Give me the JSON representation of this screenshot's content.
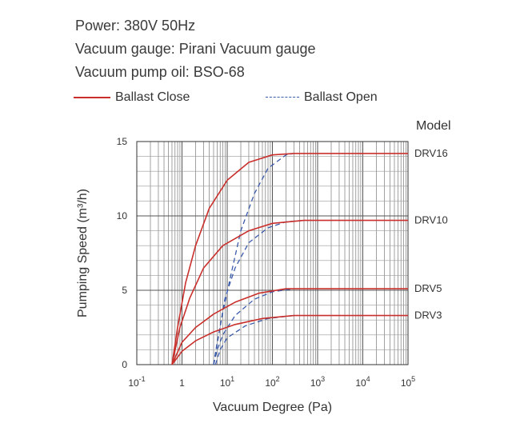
{
  "specs": {
    "power": "Power: 380V 50Hz",
    "gauge": "Vacuum gauge: Pirani Vacuum gauge",
    "oil": "Vacuum pump oil: BSO-68"
  },
  "legend": {
    "close": "Ballast Close",
    "open": "Ballast Open",
    "close_color": "#c9302c",
    "open_color": "#3b5bab"
  },
  "chart_data": {
    "type": "line",
    "xlabel": "Vacuum Degree (Pa)",
    "ylabel": "Pumping Speed (m³/h)",
    "x_scale": "log",
    "xlim": [
      0.1,
      100000
    ],
    "ylim": [
      0,
      15
    ],
    "grid": true,
    "x_ticks": [
      {
        "value": 0.1,
        "base": "10",
        "exp": "-1"
      },
      {
        "value": 1,
        "base": "1",
        "exp": ""
      },
      {
        "value": 10,
        "base": "10",
        "exp": "1"
      },
      {
        "value": 100,
        "base": "10",
        "exp": "2"
      },
      {
        "value": 1000,
        "base": "10",
        "exp": "3"
      },
      {
        "value": 10000,
        "base": "10",
        "exp": "4"
      },
      {
        "value": 100000,
        "base": "10",
        "exp": "5"
      }
    ],
    "y_ticks": [
      0,
      5,
      10,
      15
    ],
    "model_header": "Model",
    "models": [
      {
        "name": "DRV16",
        "max": 14.2,
        "close": [
          [
            0.6,
            0
          ],
          [
            0.8,
            2.5
          ],
          [
            1.2,
            5.5
          ],
          [
            2,
            8
          ],
          [
            4,
            10.5
          ],
          [
            10,
            12.4
          ],
          [
            30,
            13.6
          ],
          [
            100,
            14.1
          ],
          [
            300,
            14.2
          ],
          [
            100000,
            14.2
          ]
        ],
        "open": [
          [
            5,
            0
          ],
          [
            6,
            1.5
          ],
          [
            8,
            3.5
          ],
          [
            12,
            6
          ],
          [
            20,
            9
          ],
          [
            40,
            11.5
          ],
          [
            80,
            13.2
          ],
          [
            200,
            14.1
          ],
          [
            300,
            14.2
          ]
        ]
      },
      {
        "name": "DRV10",
        "max": 9.7,
        "close": [
          [
            0.6,
            0
          ],
          [
            0.9,
            2.5
          ],
          [
            1.5,
            4.5
          ],
          [
            3,
            6.5
          ],
          [
            8,
            8
          ],
          [
            30,
            9
          ],
          [
            100,
            9.5
          ],
          [
            500,
            9.7
          ],
          [
            100000,
            9.7
          ]
        ],
        "open": [
          [
            5,
            0
          ],
          [
            6.5,
            2
          ],
          [
            9,
            4.5
          ],
          [
            15,
            6.5
          ],
          [
            30,
            8.2
          ],
          [
            80,
            9.2
          ],
          [
            200,
            9.6
          ],
          [
            500,
            9.7
          ]
        ]
      },
      {
        "name": "DRV5",
        "max": 5.1,
        "close": [
          [
            0.6,
            0
          ],
          [
            1,
            1.5
          ],
          [
            2,
            2.5
          ],
          [
            5,
            3.4
          ],
          [
            15,
            4.2
          ],
          [
            50,
            4.8
          ],
          [
            200,
            5.1
          ],
          [
            100000,
            5.1
          ]
        ],
        "open": [
          [
            5,
            0
          ],
          [
            6,
            1
          ],
          [
            8,
            2
          ],
          [
            15,
            3.3
          ],
          [
            40,
            4.4
          ],
          [
            100,
            4.9
          ],
          [
            300,
            5.1
          ]
        ]
      },
      {
        "name": "DRV3",
        "max": 3.3,
        "close": [
          [
            0.6,
            0
          ],
          [
            1,
            0.9
          ],
          [
            2,
            1.6
          ],
          [
            5,
            2.2
          ],
          [
            15,
            2.7
          ],
          [
            60,
            3.1
          ],
          [
            300,
            3.3
          ],
          [
            100000,
            3.3
          ]
        ],
        "open": [
          [
            5.5,
            0
          ],
          [
            7,
            1
          ],
          [
            10,
            1.8
          ],
          [
            25,
            2.6
          ],
          [
            80,
            3.1
          ],
          [
            300,
            3.3
          ]
        ]
      }
    ]
  }
}
